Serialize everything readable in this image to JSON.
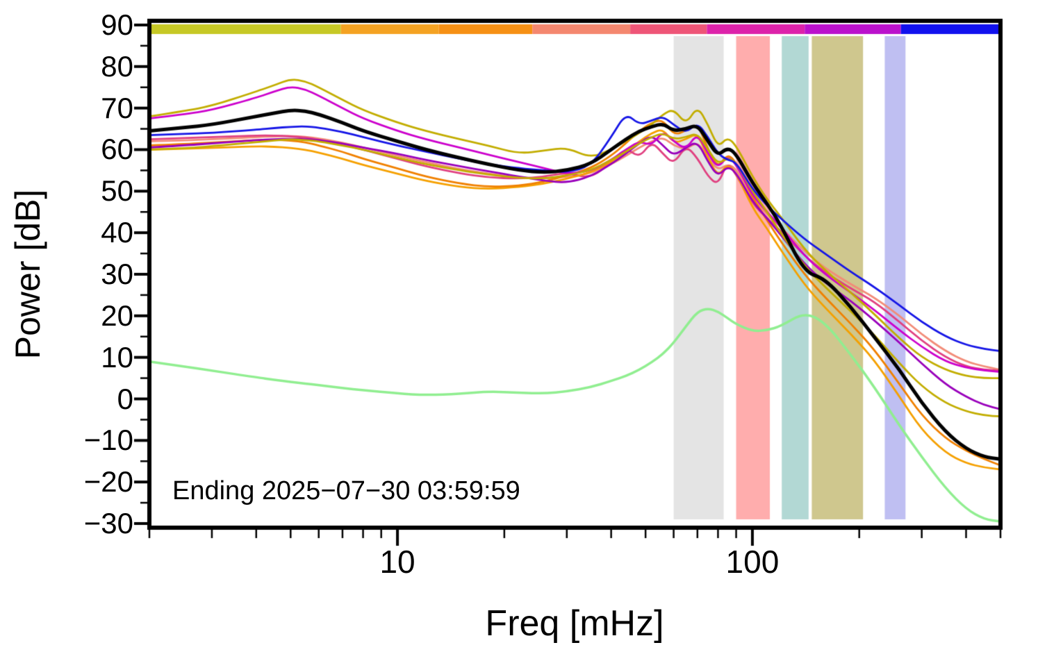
{
  "chart_data": {
    "type": "line",
    "title": "",
    "xlabel": "Freq [mHz]",
    "ylabel": "Power [dB]",
    "annotation": "Ending 2025−07−30 03:59:59",
    "x_scale": "log",
    "x_range": [
      2,
      500
    ],
    "y_range": [
      -30,
      90
    ],
    "grid": false,
    "legend": "none",
    "x_ticks": {
      "major_values": [
        10,
        100
      ],
      "major_labels": [
        "10",
        "100"
      ],
      "minor_values": [
        2,
        3,
        4,
        5,
        6,
        7,
        8,
        9,
        20,
        30,
        40,
        50,
        60,
        70,
        80,
        90,
        200,
        300,
        400,
        500
      ]
    },
    "y_ticks": {
      "major_values": [
        90,
        80,
        70,
        60,
        50,
        40,
        30,
        20,
        10,
        0,
        -10,
        -20,
        -30
      ],
      "major_labels": [
        "90",
        "80",
        "70",
        "60",
        "50",
        "40",
        "30",
        "20",
        "10",
        "0",
        "−10",
        "−20",
        "−30"
      ],
      "minor_values": [
        85,
        75,
        65,
        55,
        45,
        35,
        25,
        15,
        5,
        -5,
        -15,
        -25
      ]
    },
    "bands": [
      {
        "name": "shade-gray",
        "color": "#e4e4e4",
        "from_mhz": 60,
        "to_mhz": 83
      },
      {
        "name": "shade-red",
        "color": "#ffadad",
        "from_mhz": 90,
        "to_mhz": 112
      },
      {
        "name": "shade-teal",
        "color": "#b2d8d4",
        "from_mhz": 121,
        "to_mhz": 144
      },
      {
        "name": "shade-khaki",
        "color": "#cfc78e",
        "from_mhz": 147,
        "to_mhz": 205
      },
      {
        "name": "shade-periwinkle",
        "color": "#bfbff2",
        "from_mhz": 236,
        "to_mhz": 270
      }
    ],
    "colorbar": {
      "segments": [
        {
          "color": "#c6c825",
          "from": 0.0,
          "to": 0.225
        },
        {
          "color": "#f4a222",
          "from": 0.225,
          "to": 0.34
        },
        {
          "color": "#f69014",
          "from": 0.34,
          "to": 0.45
        },
        {
          "color": "#f4876f",
          "from": 0.45,
          "to": 0.565
        },
        {
          "color": "#ee5577",
          "from": 0.565,
          "to": 0.655
        },
        {
          "color": "#dd22aa",
          "from": 0.655,
          "to": 0.77
        },
        {
          "color": "#bb11cc",
          "from": 0.77,
          "to": 0.883
        },
        {
          "color": "#1111ee",
          "from": 0.883,
          "to": 1.0
        }
      ]
    },
    "x": [
      2,
      2.5,
      3,
      4,
      4.5,
      5,
      5.5,
      6,
      7,
      8,
      10,
      12,
      15,
      18,
      22,
      26,
      30,
      35,
      40,
      44,
      48,
      52,
      56,
      60,
      65,
      70,
      75,
      80,
      85,
      90,
      100,
      110,
      120,
      140,
      160,
      190,
      220,
      260,
      300,
      350,
      400,
      450,
      500
    ],
    "series": [
      {
        "name": "light-green",
        "color": "#90ee90",
        "width": 3.5,
        "y": [
          9,
          7.8,
          6.8,
          5.2,
          4.6,
          4.1,
          3.7,
          3.3,
          2.6,
          2.1,
          1.3,
          0.9,
          1.2,
          1.8,
          1.5,
          1.3,
          1.8,
          2.8,
          4.3,
          5.5,
          7,
          8.8,
          10.8,
          13.5,
          17.5,
          21,
          21.8,
          21,
          19.5,
          18,
          16.3,
          16.5,
          17.5,
          20.8,
          18.5,
          10.5,
          3,
          -6.5,
          -14,
          -21.5,
          -26.5,
          -29,
          -29.5
        ]
      },
      {
        "name": "salmon",
        "color": "#f28c78",
        "width": 2.8,
        "y": [
          62,
          62.2,
          62.5,
          63,
          63.2,
          63.3,
          63.1,
          62.7,
          61.7,
          60.5,
          58.5,
          57,
          55.3,
          54.2,
          53.3,
          53,
          53.5,
          54.2,
          56.5,
          58.5,
          60.5,
          62,
          63,
          61,
          60,
          62,
          58,
          55,
          56.5,
          55.5,
          48,
          44.5,
          41.5,
          35.5,
          31.5,
          27.5,
          24.5,
          20,
          15.5,
          11.5,
          9,
          7.8,
          7
        ]
      },
      {
        "name": "crimson",
        "color": "#e04080",
        "width": 2.8,
        "y": [
          62.5,
          62.8,
          63,
          63.4,
          63.4,
          63.2,
          62.9,
          62.4,
          61.2,
          60,
          57.8,
          56,
          54.3,
          53.3,
          53,
          53.5,
          54.5,
          53,
          57,
          60.5,
          58,
          62,
          59,
          56.5,
          61,
          58,
          53.5,
          51.5,
          57,
          54,
          47,
          43.5,
          40.5,
          34.5,
          30.5,
          26.5,
          23.5,
          18.5,
          14,
          10,
          7.8,
          7,
          6.8
        ]
      },
      {
        "name": "orange-light",
        "color": "#f5a000",
        "width": 2.8,
        "y": [
          60,
          60.2,
          60.4,
          60.8,
          60.7,
          60.4,
          60,
          59.3,
          57.8,
          56.3,
          54.2,
          52.5,
          51,
          50.5,
          51,
          51.8,
          53,
          54.5,
          57,
          59.5,
          62,
          64,
          65,
          61.5,
          62.5,
          64,
          58,
          53.5,
          56.5,
          54.5,
          46,
          41,
          36,
          27.5,
          22,
          15.5,
          9.5,
          0.5,
          -7.5,
          -13,
          -15.5,
          -16.5,
          -17
        ]
      },
      {
        "name": "orange-dark",
        "color": "#f08000",
        "width": 2.8,
        "y": [
          61,
          61.3,
          61.7,
          62.3,
          62.4,
          62.2,
          61.8,
          61,
          59.5,
          57.8,
          55.5,
          53.5,
          51.8,
          51,
          51.3,
          52.3,
          53.8,
          55.5,
          58.5,
          61.5,
          64.5,
          66.5,
          67.2,
          63.5,
          64.5,
          66.5,
          60,
          55.5,
          59,
          57,
          48.5,
          43,
          38,
          30,
          24.5,
          18,
          12,
          3.5,
          -4,
          -9.5,
          -12.5,
          -14.5,
          -16
        ]
      },
      {
        "name": "purple",
        "color": "#9900bb",
        "width": 2.8,
        "y": [
          60.5,
          61,
          61.5,
          62.3,
          62.5,
          62.6,
          62.5,
          62.3,
          61.5,
          60.5,
          59,
          57.5,
          56,
          54.8,
          53.5,
          52.5,
          52,
          53.5,
          56.5,
          59,
          61.5,
          63.5,
          61,
          58.5,
          60.5,
          62,
          57,
          53.5,
          56,
          54.5,
          47.5,
          43.5,
          39.5,
          32.5,
          28,
          23.5,
          19,
          13.5,
          8.5,
          3.5,
          0.5,
          -1.5,
          -2.5
        ]
      },
      {
        "name": "magenta",
        "color": "#cc00cc",
        "width": 2.8,
        "y": [
          67.5,
          68.5,
          69.5,
          72.5,
          74,
          75.2,
          74.5,
          73,
          70,
          67.5,
          64.5,
          62.5,
          60.5,
          58.8,
          57,
          55.5,
          54.2,
          54.8,
          57.5,
          60,
          62,
          61,
          64.5,
          62,
          60,
          64,
          59,
          55.5,
          58.5,
          56.5,
          49,
          45,
          41.5,
          34.5,
          30,
          25.5,
          21.5,
          16.5,
          12.5,
          9,
          7.5,
          6.8,
          6.5
        ]
      },
      {
        "name": "olive-low",
        "color": "#c2ad00",
        "width": 2.8,
        "y": [
          60,
          60.3,
          60.8,
          61.8,
          62.2,
          62.5,
          62.3,
          62,
          61,
          60,
          58,
          56.5,
          55,
          54,
          53.2,
          53,
          53.8,
          55,
          57.5,
          59.5,
          61.5,
          63,
          64,
          62.5,
          63,
          64,
          60,
          56.5,
          58,
          57,
          50,
          45,
          40,
          32,
          27,
          21,
          15.5,
          8.5,
          3,
          -1,
          -3,
          -4,
          -4.2
        ]
      },
      {
        "name": "olive-high",
        "color": "#c2ad00",
        "width": 2.8,
        "y": [
          68,
          69.3,
          70.5,
          74,
          75.5,
          77,
          76.5,
          75,
          72,
          69.5,
          66.5,
          64.5,
          62.5,
          61,
          59,
          59.8,
          60.5,
          58,
          60,
          62,
          64,
          66,
          68.5,
          69.8,
          66,
          70.5,
          66,
          60.5,
          63,
          61,
          53.5,
          48,
          44,
          36,
          31,
          25.5,
          20.5,
          14.5,
          10,
          7,
          5.5,
          5,
          5
        ]
      },
      {
        "name": "blue",
        "color": "#1515e6",
        "width": 2.8,
        "y": [
          63.5,
          63.8,
          64,
          64.8,
          65.2,
          65.5,
          65.6,
          65.3,
          64.3,
          63,
          61,
          59.5,
          57.8,
          56.5,
          55.5,
          55,
          54.5,
          56,
          63,
          68.8,
          66,
          67,
          68,
          66,
          64,
          66.5,
          63,
          59,
          57.5,
          57,
          50.5,
          46.5,
          43.5,
          38.5,
          35,
          30.5,
          27,
          22.5,
          18.5,
          15,
          13,
          12,
          11.5
        ]
      },
      {
        "name": "black-mean",
        "color": "#000000",
        "width": 5,
        "y": [
          64.5,
          65.3,
          66,
          68,
          68.8,
          69.5,
          69.3,
          68.5,
          66.5,
          64.5,
          62,
          60,
          58,
          56.5,
          55,
          54.5,
          55,
          56.5,
          60,
          62.5,
          64.5,
          65.5,
          66.3,
          64.5,
          65,
          66,
          62,
          58.5,
          60.5,
          59,
          52,
          47,
          42,
          30.5,
          29,
          22,
          15,
          7,
          -1,
          -8,
          -12,
          -14,
          -14.5
        ]
      }
    ]
  }
}
